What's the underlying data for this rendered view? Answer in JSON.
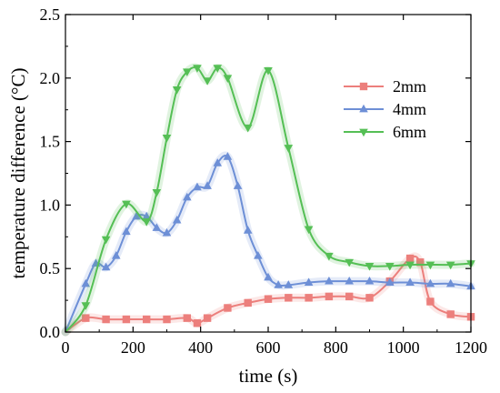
{
  "chart_data": {
    "type": "line",
    "title": "",
    "xlabel": "time (s)",
    "ylabel": "temperature difference (°C)",
    "xlim": [
      0,
      1200
    ],
    "ylim": [
      0.0,
      2.5
    ],
    "xticks": [
      0,
      200,
      400,
      600,
      800,
      1000,
      1200
    ],
    "xtick_labels": [
      "0",
      "200",
      "400",
      "600",
      "800",
      "1000",
      "1200"
    ],
    "yticks": [
      0.0,
      0.5,
      1.0,
      1.5,
      2.0,
      2.5
    ],
    "ytick_labels": [
      "0.0",
      "0.5",
      "1.0",
      "1.5",
      "2.0",
      "2.5"
    ],
    "grid": false,
    "legend_position": "top-right",
    "series": [
      {
        "name": "2mm",
        "color": "#ec7f7c",
        "marker": "square",
        "x": [
          0,
          60,
          120,
          180,
          240,
          300,
          360,
          390,
          420,
          480,
          540,
          600,
          660,
          720,
          780,
          840,
          900,
          960,
          1020,
          1050,
          1080,
          1140,
          1200
        ],
        "y": [
          0.0,
          0.11,
          0.1,
          0.1,
          0.1,
          0.1,
          0.11,
          0.07,
          0.11,
          0.19,
          0.23,
          0.26,
          0.27,
          0.27,
          0.28,
          0.28,
          0.27,
          0.4,
          0.58,
          0.55,
          0.24,
          0.14,
          0.12
        ]
      },
      {
        "name": "4mm",
        "color": "#6d8fd6",
        "marker": "triangle-up",
        "x": [
          0,
          60,
          90,
          120,
          150,
          180,
          210,
          240,
          270,
          300,
          330,
          360,
          390,
          420,
          450,
          480,
          510,
          540,
          570,
          600,
          630,
          660,
          720,
          780,
          840,
          900,
          960,
          1020,
          1080,
          1140,
          1200
        ],
        "y": [
          0.0,
          0.38,
          0.54,
          0.51,
          0.6,
          0.79,
          0.91,
          0.91,
          0.82,
          0.78,
          0.88,
          1.06,
          1.14,
          1.15,
          1.33,
          1.38,
          1.15,
          0.8,
          0.6,
          0.43,
          0.37,
          0.37,
          0.39,
          0.4,
          0.4,
          0.4,
          0.39,
          0.39,
          0.38,
          0.38,
          0.36
        ]
      },
      {
        "name": "6mm",
        "color": "#55bf55",
        "marker": "triangle-down",
        "x": [
          0,
          60,
          120,
          180,
          240,
          270,
          300,
          330,
          360,
          390,
          420,
          450,
          480,
          540,
          600,
          660,
          720,
          780,
          840,
          900,
          960,
          1020,
          1080,
          1140,
          1200
        ],
        "y": [
          0.0,
          0.21,
          0.73,
          1.01,
          0.87,
          1.1,
          1.53,
          1.91,
          2.05,
          2.08,
          1.98,
          2.08,
          2.0,
          1.61,
          2.06,
          1.45,
          0.81,
          0.6,
          0.55,
          0.52,
          0.52,
          0.53,
          0.53,
          0.53,
          0.54
        ]
      }
    ]
  }
}
